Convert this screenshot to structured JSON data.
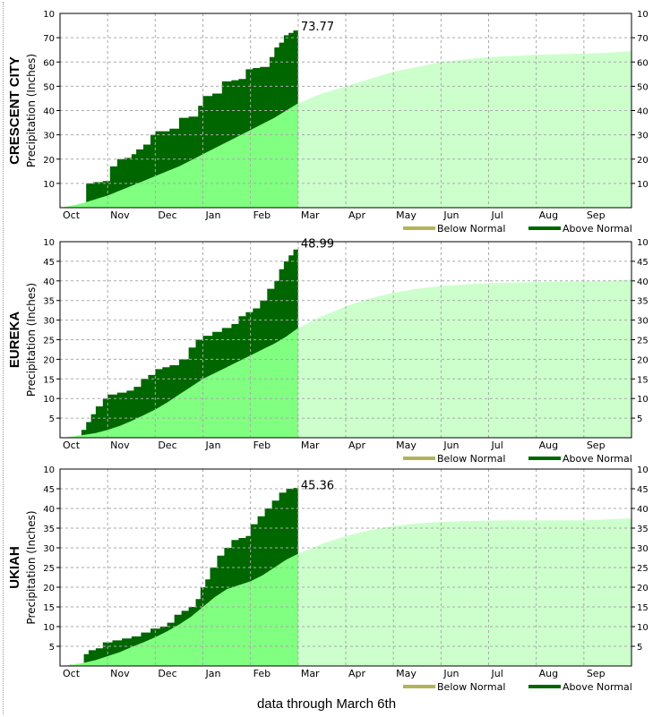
{
  "footer_text": "data through March 6th",
  "colors": {
    "normal_fill_observed": "#80ff80",
    "normal_fill_future": "#ccffcc",
    "above_normal": "#006600",
    "below_normal": "#b3b35a",
    "grid": "#aaaaaa"
  },
  "chart_data": [
    {
      "type": "area",
      "station": "CRESCENT CITY",
      "ylabel": "Precipitation (Inches)",
      "months": [
        "Oct",
        "Nov",
        "Dec",
        "Jan",
        "Feb",
        "Mar",
        "Apr",
        "May",
        "Jun",
        "Jul",
        "Aug",
        "Sep"
      ],
      "ylim": [
        0,
        80
      ],
      "yticks_left": [
        "10",
        "20",
        "30",
        "40",
        "50",
        "60",
        "70"
      ],
      "yticks_right": [
        "10",
        "20",
        "30",
        "40",
        "50",
        "60",
        "70"
      ],
      "top_tick_label": "10",
      "current_value_label": "73.77",
      "legend": [
        "Below Normal",
        "Above Normal"
      ],
      "grid": true,
      "normal": {
        "x": [
          0,
          0.25,
          0.5,
          0.75,
          1,
          1.25,
          1.5,
          1.75,
          2,
          2.25,
          2.5,
          2.75,
          3,
          3.25,
          3.5,
          3.75,
          4,
          4.25,
          4.5,
          4.75,
          5,
          5.5,
          6,
          6.5,
          7,
          7.5,
          8,
          8.5,
          9,
          9.5,
          10,
          10.5,
          11,
          11.5,
          12
        ],
        "y": [
          0,
          0.8,
          2,
          3.5,
          5,
          7,
          9,
          11,
          13,
          15,
          17,
          19.5,
          22,
          24.5,
          27,
          29.5,
          32,
          34.5,
          37,
          40,
          43,
          47,
          50,
          53,
          56,
          58,
          60,
          61,
          62,
          62.5,
          63,
          63.2,
          63.5,
          63.8,
          64.5
        ]
      },
      "observed": {
        "x": [
          0,
          0.2,
          0.35,
          0.55,
          0.7,
          0.9,
          1.05,
          1.2,
          1.35,
          1.5,
          1.6,
          1.75,
          1.9,
          2,
          2.1,
          2.3,
          2.5,
          2.7,
          2.9,
          3,
          3.2,
          3.4,
          3.6,
          3.75,
          3.9,
          4.05,
          4.2,
          4.4,
          4.5,
          4.6,
          4.7,
          4.8,
          4.9,
          5
        ],
        "y": [
          0,
          0.5,
          1.2,
          10,
          10.5,
          11,
          17,
          20,
          20.5,
          22,
          24,
          26,
          30,
          31.5,
          31.5,
          32.5,
          37,
          37.5,
          42,
          46,
          47,
          52,
          52.5,
          53,
          57,
          57.5,
          58,
          62,
          66,
          68,
          71,
          72,
          73,
          73.77
        ]
      }
    },
    {
      "type": "area",
      "station": "EUREKA",
      "ylabel": "Precipitation (Inches)",
      "months": [
        "Oct",
        "Nov",
        "Dec",
        "Jan",
        "Feb",
        "Mar",
        "Apr",
        "May",
        "Jun",
        "Jul",
        "Aug",
        "Sep"
      ],
      "ylim": [
        0,
        50
      ],
      "yticks_left": [
        "5",
        "10",
        "15",
        "20",
        "25",
        "30",
        "35",
        "40",
        "45"
      ],
      "yticks_right": [
        "5",
        "10",
        "15",
        "20",
        "25",
        "30",
        "35",
        "40",
        "45"
      ],
      "top_tick_label": "10",
      "current_value_label": "48.99",
      "legend": [
        "Below Normal",
        "Above Normal"
      ],
      "grid": true,
      "normal": {
        "x": [
          0,
          0.25,
          0.5,
          0.75,
          1,
          1.25,
          1.5,
          1.75,
          2,
          2.25,
          2.5,
          2.75,
          3,
          3.25,
          3.5,
          3.75,
          4,
          4.25,
          4.5,
          4.75,
          5,
          5.5,
          6,
          6.5,
          7,
          7.5,
          8,
          8.5,
          9,
          9.5,
          10,
          10.5,
          11,
          11.5,
          12
        ],
        "y": [
          0,
          0.3,
          0.7,
          1.2,
          2,
          3,
          4.3,
          5.7,
          7.2,
          9,
          11,
          13,
          15,
          16.5,
          18,
          19.5,
          21,
          22.5,
          24,
          25.8,
          28,
          31,
          33.5,
          35.5,
          37,
          38,
          38.7,
          39.1,
          39.4,
          39.6,
          39.7,
          39.8,
          39.9,
          40,
          40.3
        ]
      },
      "observed": {
        "x": [
          0,
          0.2,
          0.35,
          0.45,
          0.55,
          0.65,
          0.75,
          0.9,
          1,
          1.2,
          1.4,
          1.55,
          1.7,
          1.85,
          2,
          2.15,
          2.3,
          2.5,
          2.7,
          2.85,
          3,
          3.2,
          3.4,
          3.6,
          3.75,
          3.9,
          4.05,
          4.2,
          4.35,
          4.5,
          4.6,
          4.7,
          4.8,
          4.9,
          5
        ],
        "y": [
          0,
          0.2,
          0.5,
          2,
          4,
          6,
          8,
          10,
          11,
          11.5,
          12,
          13,
          15,
          16,
          17.5,
          18,
          18.5,
          20,
          23,
          25,
          26,
          27,
          28,
          29,
          31,
          32,
          33,
          35,
          38,
          40,
          43,
          45,
          46.5,
          48,
          48.99
        ]
      }
    },
    {
      "type": "area",
      "station": "UKIAH",
      "ylabel": "Precipitation (Inches)",
      "months": [
        "Oct",
        "Nov",
        "Dec",
        "Jan",
        "Feb",
        "Mar",
        "Apr",
        "May",
        "Jun",
        "Jul",
        "Aug",
        "Sep"
      ],
      "ylim": [
        0,
        50
      ],
      "yticks_left": [
        "5",
        "10",
        "15",
        "20",
        "25",
        "30",
        "35",
        "40",
        "45"
      ],
      "yticks_right": [
        "5",
        "10",
        "15",
        "20",
        "25",
        "30",
        "35",
        "40",
        "45"
      ],
      "top_tick_label": "10",
      "current_value_label": "45.36",
      "legend": [
        "Below Normal",
        "Above Normal"
      ],
      "grid": true,
      "normal": {
        "x": [
          0,
          0.25,
          0.5,
          0.75,
          1,
          1.25,
          1.5,
          1.75,
          2,
          2.25,
          2.5,
          2.75,
          3,
          3.25,
          3.5,
          3.75,
          4,
          4.25,
          4.5,
          4.75,
          5,
          5.5,
          6,
          6.5,
          7,
          7.5,
          8,
          8.5,
          9,
          9.5,
          10,
          10.5,
          11,
          11.5,
          12
        ],
        "y": [
          0,
          0.3,
          0.8,
          1.5,
          2.5,
          3.5,
          4.8,
          6,
          7.3,
          8.8,
          10.5,
          12.5,
          15,
          17.5,
          19.5,
          20.5,
          21.5,
          23,
          25,
          27,
          28.5,
          31,
          33,
          34.5,
          35.5,
          36.2,
          36.6,
          36.8,
          36.9,
          37,
          37,
          37,
          37,
          37.2,
          37.5
        ]
      },
      "observed": {
        "x": [
          0,
          0.2,
          0.35,
          0.5,
          0.6,
          0.75,
          0.9,
          1.1,
          1.3,
          1.5,
          1.7,
          1.9,
          2.1,
          2.25,
          2.4,
          2.55,
          2.7,
          2.85,
          2.95,
          3.05,
          3.15,
          3.3,
          3.45,
          3.6,
          3.75,
          3.9,
          4,
          4.15,
          4.3,
          4.45,
          4.6,
          4.75,
          4.9,
          5
        ],
        "y": [
          0,
          0.3,
          0.5,
          3,
          4,
          4.5,
          6,
          6.5,
          7,
          7.5,
          8.5,
          9.5,
          10,
          11,
          13,
          14,
          15,
          17,
          20,
          22,
          25,
          28,
          30,
          32,
          32.5,
          33,
          36,
          38,
          40,
          42,
          44,
          45,
          45.2,
          45.36
        ]
      }
    }
  ]
}
